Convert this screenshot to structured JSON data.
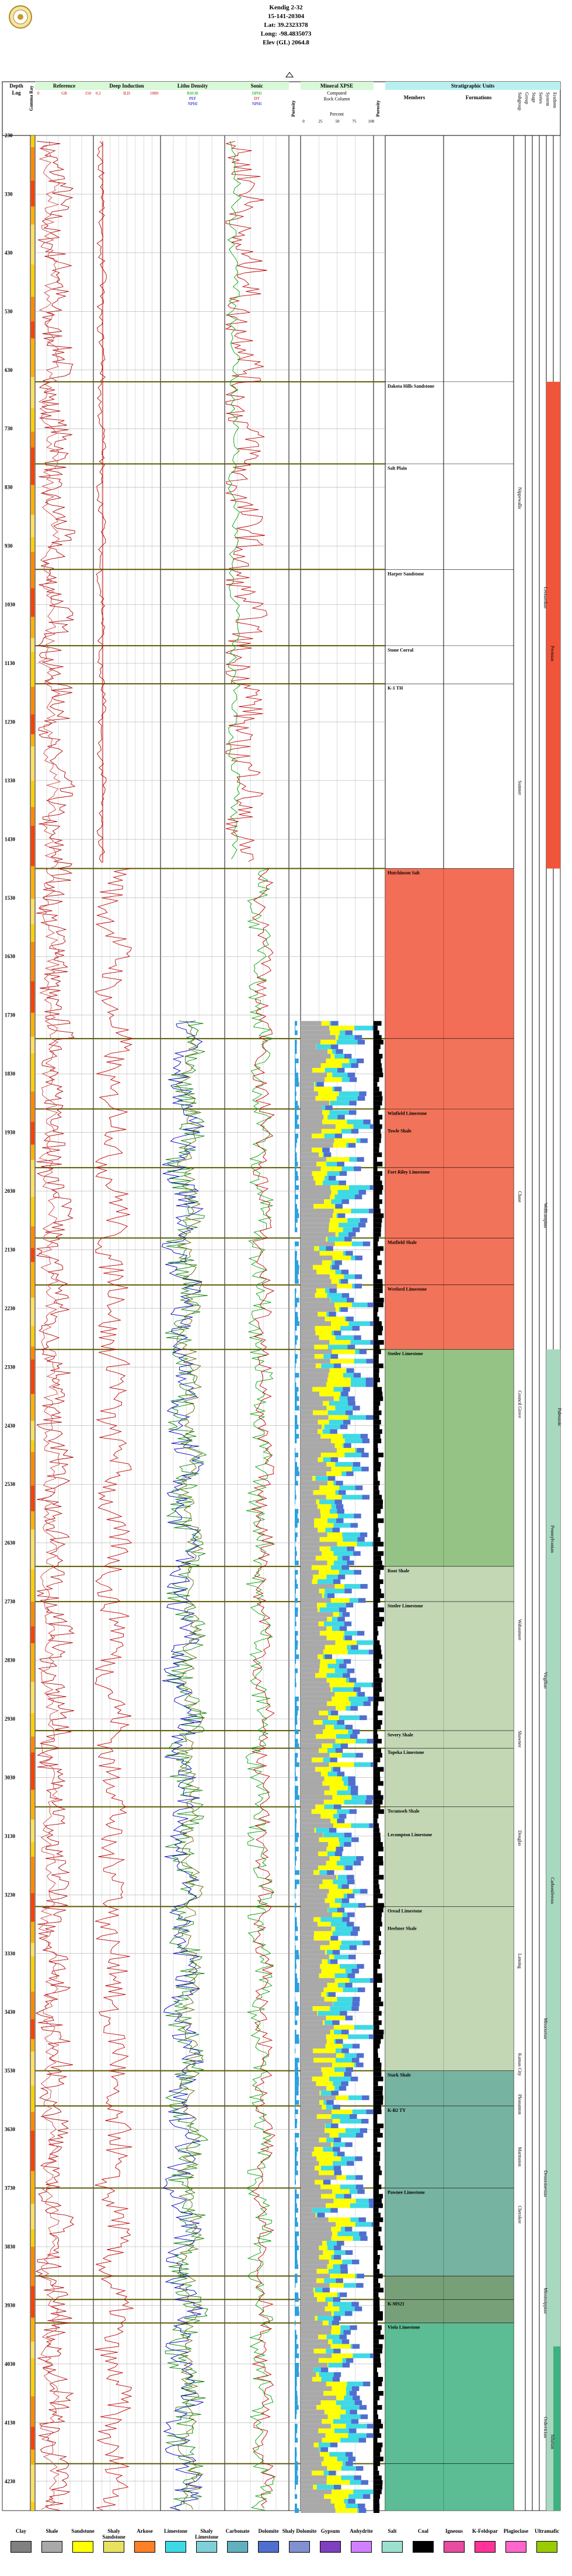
{
  "header": {
    "well_name": "Kendig 2-32",
    "api": "15-141-20304",
    "lat": "Lat: 39.2323378",
    "long": "Long: -98.4835073",
    "elev": "Elev (GL) 2064.8"
  },
  "tracks": {
    "depth_title": "Depth",
    "depth_sub": "Log",
    "gamma_title": "Gamma Ray",
    "reference_title": "Reference",
    "reference_scale": [
      "0",
      "GR",
      "150",
      "0"
    ],
    "deep_induction_title": "Deep Induction",
    "deep_induction_scale": [
      "0.2",
      "ILD",
      "1000"
    ],
    "litho_density_title": "Litho Density",
    "litho_density_curves": [
      "RHOB",
      "PEF",
      "NPHI"
    ],
    "sonic_title": "Sonic",
    "sonic_curves": [
      "DPHI",
      "DT",
      "NPHI"
    ],
    "porosity_title": "Porosity",
    "mineral_title": "Mineral XPSE",
    "mineral_sub": [
      "Computed",
      "Rock Column"
    ],
    "mineral_axis_title": "Percent",
    "mineral_ticks": [
      "0",
      "25",
      "50",
      "75",
      "100"
    ],
    "vsh_title": "Porosity",
    "strat_title": "Stratigraphic Units",
    "strat_cols": [
      "Members",
      "Formations",
      "Subgroup",
      "Group",
      "Stage",
      "Series",
      "System",
      "Erathem"
    ]
  },
  "depth_ticks": [
    "230",
    "330",
    "430",
    "530",
    "630",
    "730",
    "830",
    "930",
    "1030",
    "1130",
    "1230",
    "1330",
    "1430",
    "1530",
    "1630",
    "1730",
    "1830",
    "1930",
    "2030",
    "2130",
    "2230",
    "2330",
    "2430",
    "2530",
    "2630",
    "2730",
    "2830",
    "2930",
    "3030",
    "3130",
    "3230",
    "3330",
    "3430",
    "3530",
    "3630",
    "3730",
    "3830",
    "3930",
    "4030",
    "4130",
    "4230"
  ],
  "members": [
    {
      "name": "Dakota Hills Sandstone",
      "depth": 650
    },
    {
      "name": "Salt Plain",
      "depth": 790
    },
    {
      "name": "Harper Sandstone",
      "depth": 970
    },
    {
      "name": "Stone Corral",
      "depth": 1100
    },
    {
      "name": "K-1 TH",
      "depth": 1165
    },
    {
      "name": "Hutchinson Salt",
      "depth": 1480
    },
    {
      "name": "Winfield Limestone",
      "depth": 1890
    },
    {
      "name": "Towle Shale",
      "depth": 1920
    },
    {
      "name": "Fort Riley Limestone",
      "depth": 1990
    },
    {
      "name": "Matfield Shale",
      "depth": 2110
    },
    {
      "name": "Wreford Limestone",
      "depth": 2190
    },
    {
      "name": "Stotler Limestone",
      "depth": 2300
    },
    {
      "name": "Root Shale",
      "depth": 2670
    },
    {
      "name": "Stotler Limestone",
      "depth": 2730
    },
    {
      "name": "Severy Shale",
      "depth": 2950
    },
    {
      "name": "Topeka Limestone",
      "depth": 2980
    },
    {
      "name": "Tecumseh Shale",
      "depth": 3080
    },
    {
      "name": "Lecompton Limestone",
      "depth": 3120
    },
    {
      "name": "Oread Limestone",
      "depth": 3250
    },
    {
      "name": "Heebner Shale",
      "depth": 3280
    },
    {
      "name": "Stark Shale",
      "depth": 3530
    },
    {
      "name": "K-B2 TY",
      "depth": 3590
    },
    {
      "name": "Pawnee Limestone",
      "depth": 3730
    },
    {
      "name": "K-MS21",
      "depth": 3920
    },
    {
      "name": "Viola Limestone",
      "depth": 3960
    }
  ],
  "strat_right": {
    "subgroup": [
      "Nippewalla",
      "Sumner",
      "Chase",
      "Council Grove",
      "Wabaunsee",
      "Shawnee",
      "Douglas",
      "Lansing",
      "Kansas City",
      "Pleasanton",
      "Marmaton",
      "Cherokee"
    ],
    "series": [
      "Leonardian",
      "Wolfcampian",
      "Virgilian",
      "Missourian",
      "Desmoinesian",
      "Mississippian",
      "Ordovician"
    ],
    "system": [
      "Permian",
      "Pennsylvanian",
      "Carboniferous",
      "Silurian"
    ],
    "erathem": [
      "Paleozoic"
    ]
  },
  "legend": [
    {
      "label": "Clay",
      "color": "#808080"
    },
    {
      "label": "Shale",
      "color": "#a9a9a9"
    },
    {
      "label": "Sandstone",
      "color": "#ffff00"
    },
    {
      "label": "Shaly Sandstone",
      "color": "#e8e060"
    },
    {
      "label": "Arkose",
      "color": "#ff7f27"
    },
    {
      "label": "Limestone",
      "color": "#3fd9e6"
    },
    {
      "label": "Shaly Limestone",
      "color": "#7fcfd9"
    },
    {
      "label": "Carbonate",
      "color": "#60b0c0"
    },
    {
      "label": "Dolomite",
      "color": "#4f6fd0"
    },
    {
      "label": "Shaly Dolomite",
      "color": "#8090d0"
    },
    {
      "label": "Gypsum",
      "color": "#7f3fbf"
    },
    {
      "label": "Anhydrite",
      "color": "#d080ff"
    },
    {
      "label": "Salt",
      "color": "#9ce0d0"
    },
    {
      "label": "Coal",
      "color": "#000000"
    },
    {
      "label": "Igneous",
      "color": "#e64ca0"
    },
    {
      "label": "K-Feldspar",
      "color": "#ff3399"
    },
    {
      "label": "Plagioclase",
      "color": "#ff66cc"
    },
    {
      "label": "Ultramafic",
      "color": "#99cc00"
    }
  ],
  "chart_data": {
    "type": "line",
    "title": "Kendig 2-32",
    "y_axis": "Depth",
    "ylim": [
      230,
      4280
    ],
    "formation_tops": [
      650,
      790,
      970,
      1100,
      1165,
      1480,
      1770,
      1890,
      1990,
      2110,
      2190,
      2300,
      2670,
      2730,
      2950,
      2980,
      3080,
      3250,
      3530,
      3590,
      3730,
      3880,
      3920,
      3960,
      4200
    ],
    "series": [
      {
        "name": "GR",
        "values": []
      },
      {
        "name": "ILD",
        "values": []
      },
      {
        "name": "RHOB",
        "values": []
      },
      {
        "name": "DT",
        "values": []
      }
    ]
  }
}
